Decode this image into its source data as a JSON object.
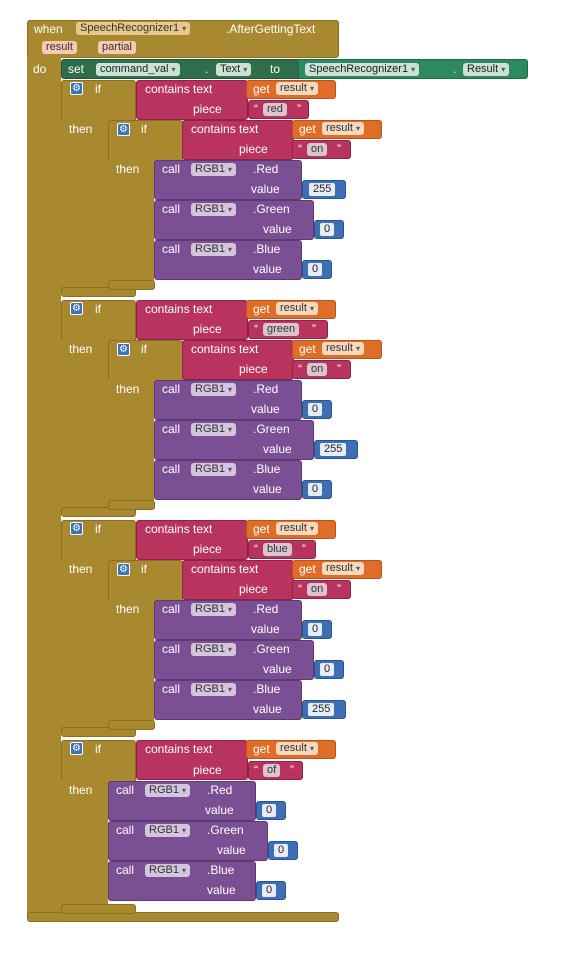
{
  "event": {
    "when": "when",
    "component": "SpeechRecognizer1",
    "event_name": ".AfterGettingText",
    "param1": "result",
    "param2": "partial",
    "do": "do"
  },
  "set_block": {
    "set": "set",
    "component": "command_val",
    "property": "Text",
    "to": "to",
    "source_component": "SpeechRecognizer1",
    "source_property": "Result"
  },
  "labels": {
    "if": "if",
    "then": "then",
    "contains_text": "contains text",
    "piece": "piece",
    "get": "get",
    "result": "result",
    "call": "call",
    "value": "value",
    "rgb": "RGB1",
    "red": ".Red",
    "green": ".Green",
    "blue": ".Blue",
    "dot": "."
  },
  "blocks": [
    {
      "outer_piece": "red",
      "inner_piece": "on",
      "red": "255",
      "green": "0",
      "blue": "0"
    },
    {
      "outer_piece": "green",
      "inner_piece": "on",
      "red": "0",
      "green": "255",
      "blue": "0"
    },
    {
      "outer_piece": "blue",
      "inner_piece": "on",
      "red": "0",
      "green": "0",
      "blue": "255"
    },
    {
      "outer_piece": "of",
      "red": "0",
      "green": "0",
      "blue": "0"
    }
  ],
  "icons": {
    "gear": "gear-icon",
    "dropdown": "dropdown-arrow-icon"
  },
  "colors": {
    "control": "#a8892f",
    "text_block": "#b8335d",
    "variable": "#e06d27",
    "component": "#7b4f93",
    "number": "#3c6fb4",
    "setter": "#2f6e4a"
  }
}
